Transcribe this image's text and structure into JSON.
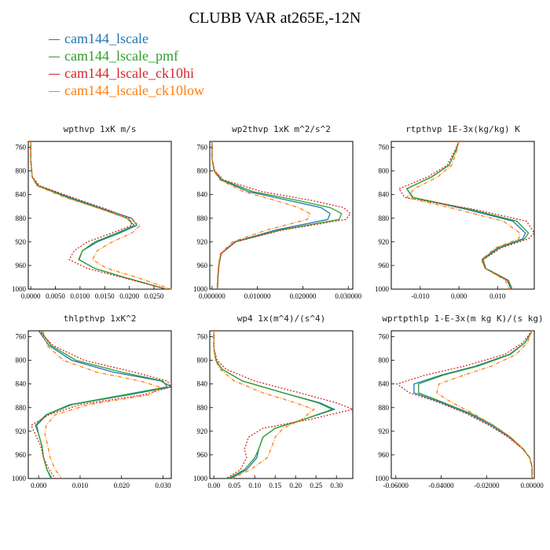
{
  "title": "CLUBB VAR at265E,-12N",
  "series": [
    {
      "name": "cam144_lscale",
      "color": "#1f77b4",
      "dash": ""
    },
    {
      "name": "cam144_lscale_pmf",
      "color": "#2ca02c",
      "dash": ""
    },
    {
      "name": "cam144_lscale_ck10hi",
      "color": "#d62728",
      "dash": "2,2"
    },
    {
      "name": "cam144_lscale_ck10low",
      "color": "#ff7f0e",
      "dash": "5,2,1,2"
    }
  ],
  "chart_data": [
    {
      "type": "line",
      "title": "wpthvp  1xK m/s",
      "xlim": [
        -0.0005,
        0.0285
      ],
      "ylim": [
        750,
        1000
      ],
      "y_ticks": [
        760,
        800,
        840,
        880,
        920,
        960,
        1000
      ],
      "x_ticks": [
        0.0,
        0.005,
        0.01,
        0.015,
        0.02,
        0.025
      ],
      "x_tick_labels": [
        "0.0000",
        "0.0050",
        "0.0100",
        "0.0150",
        "0.0200",
        "0.0250"
      ],
      "y": [
        750,
        780,
        810,
        825,
        845,
        865,
        880,
        892,
        905,
        920,
        935,
        950,
        965,
        980,
        1000
      ],
      "series": [
        {
          "x": [
            0.0,
            0.0,
            0.0003,
            0.0015,
            0.008,
            0.015,
            0.0205,
            0.0215,
            0.018,
            0.0135,
            0.0105,
            0.0098,
            0.013,
            0.019,
            0.0275
          ]
        },
        {
          "x": [
            0.0,
            0.0,
            0.0003,
            0.0014,
            0.0075,
            0.0145,
            0.0195,
            0.021,
            0.0175,
            0.013,
            0.0105,
            0.0097,
            0.013,
            0.019,
            0.0275
          ]
        },
        {
          "x": [
            0.0,
            0.0,
            0.0003,
            0.0018,
            0.0085,
            0.0155,
            0.02,
            0.0205,
            0.0165,
            0.0115,
            0.0088,
            0.0078,
            0.0115,
            0.0185,
            0.0275
          ]
        },
        {
          "x": [
            0.0,
            0.0,
            0.0003,
            0.0012,
            0.007,
            0.0145,
            0.0195,
            0.0222,
            0.0205,
            0.0165,
            0.0135,
            0.0125,
            0.0155,
            0.0215,
            0.0285
          ]
        }
      ]
    },
    {
      "type": "line",
      "title": "wp2thvp  1xK m^2/s^2",
      "xlim": [
        -0.0005,
        0.031
      ],
      "ylim": [
        750,
        1000
      ],
      "y_ticks": [
        760,
        800,
        840,
        880,
        920,
        960,
        1000
      ],
      "x_ticks": [
        0.0,
        0.01,
        0.02,
        0.03
      ],
      "x_tick_labels": [
        "0.000000",
        "0.010000",
        "0.020000",
        "0.030000"
      ],
      "y": [
        750,
        780,
        800,
        815,
        835,
        850,
        862,
        872,
        882,
        900,
        920,
        940,
        960,
        980,
        1000
      ],
      "series": [
        {
          "x": [
            0.0,
            0.0,
            0.0005,
            0.002,
            0.008,
            0.017,
            0.024,
            0.026,
            0.0255,
            0.014,
            0.005,
            0.002,
            0.0015,
            0.0013,
            0.0012
          ]
        },
        {
          "x": [
            0.0,
            0.0,
            0.0005,
            0.0022,
            0.009,
            0.019,
            0.026,
            0.0285,
            0.028,
            0.015,
            0.0052,
            0.002,
            0.0015,
            0.0013,
            0.0012
          ]
        },
        {
          "x": [
            0.0,
            0.0,
            0.0006,
            0.0025,
            0.011,
            0.022,
            0.029,
            0.0305,
            0.0295,
            0.0155,
            0.0052,
            0.002,
            0.0015,
            0.0013,
            0.0012
          ]
        },
        {
          "x": [
            0.0,
            0.0,
            0.0004,
            0.0017,
            0.007,
            0.014,
            0.019,
            0.0215,
            0.021,
            0.012,
            0.0045,
            0.0018,
            0.0014,
            0.0012,
            0.0011
          ]
        }
      ]
    },
    {
      "type": "line",
      "title": "rtpthvp  1E-3x(kg/kg) K",
      "xlim": [
        -0.0175,
        0.0195
      ],
      "ylim": [
        750,
        1000
      ],
      "y_ticks": [
        760,
        800,
        840,
        880,
        920,
        960,
        1000
      ],
      "x_ticks": [
        -0.01,
        0.0,
        0.01
      ],
      "x_tick_labels": [
        "-0.010",
        "0.000",
        "0.010"
      ],
      "y": [
        750,
        765,
        790,
        810,
        830,
        845,
        865,
        885,
        905,
        915,
        930,
        950,
        965,
        985,
        1000
      ],
      "series": [
        {
          "x": [
            0.0,
            -0.0008,
            -0.0025,
            -0.007,
            -0.0135,
            -0.012,
            0.002,
            0.014,
            0.0172,
            0.0165,
            0.01,
            0.006,
            0.0068,
            0.0125,
            0.0135
          ]
        },
        {
          "x": [
            0.0,
            -0.0008,
            -0.0025,
            -0.007,
            -0.0135,
            -0.0118,
            0.003,
            0.015,
            0.018,
            0.017,
            0.0105,
            0.0062,
            0.007,
            0.0128,
            0.0138
          ]
        },
        {
          "x": [
            0.0,
            -0.001,
            -0.003,
            -0.008,
            -0.0155,
            -0.014,
            0.004,
            0.0175,
            0.0195,
            0.018,
            0.011,
            0.0063,
            0.0068,
            0.0125,
            0.0135
          ]
        },
        {
          "x": [
            0.0,
            -0.0005,
            -0.0018,
            -0.0055,
            -0.0115,
            -0.0135,
            -0.0005,
            0.0115,
            0.0158,
            0.0155,
            0.0095,
            0.0058,
            0.0068,
            0.012,
            0.013
          ]
        }
      ]
    },
    {
      "type": "line",
      "title": "thlpthvp  1xK^2",
      "xlim": [
        -0.0025,
        0.032
      ],
      "ylim": [
        750,
        1000
      ],
      "y_ticks": [
        760,
        800,
        840,
        880,
        920,
        960,
        1000
      ],
      "x_ticks": [
        0.0,
        0.01,
        0.02,
        0.03
      ],
      "x_tick_labels": [
        "0.000",
        "0.010",
        "0.020",
        "0.030"
      ],
      "y": [
        750,
        775,
        800,
        820,
        835,
        845,
        858,
        875,
        892,
        910,
        925,
        945,
        965,
        985,
        1000
      ],
      "series": [
        {
          "x": [
            0.0,
            0.0025,
            0.008,
            0.018,
            0.0295,
            0.032,
            0.022,
            0.008,
            0.002,
            -0.0005,
            0.0,
            0.0008,
            0.0012,
            0.002,
            0.003
          ]
        },
        {
          "x": [
            0.0005,
            0.003,
            0.009,
            0.02,
            0.03,
            0.031,
            0.021,
            0.0075,
            0.0018,
            -0.0008,
            0.0,
            0.0008,
            0.0012,
            0.002,
            0.0032
          ]
        },
        {
          "x": [
            0.0,
            0.0035,
            0.011,
            0.023,
            0.031,
            0.032,
            0.0255,
            0.01,
            0.0025,
            -0.0018,
            -0.0008,
            0.0005,
            0.0012,
            0.0025,
            0.004
          ]
        },
        {
          "x": [
            0.001,
            0.002,
            0.006,
            0.014,
            0.0245,
            0.029,
            0.027,
            0.012,
            0.004,
            0.0018,
            0.0015,
            0.0022,
            0.0028,
            0.004,
            0.0055
          ]
        }
      ]
    },
    {
      "type": "line",
      "title": "wp4  1x(m^4)/(s^4)",
      "xlim": [
        -0.01,
        0.34
      ],
      "ylim": [
        750,
        1000
      ],
      "y_ticks": [
        760,
        800,
        840,
        880,
        920,
        960,
        1000
      ],
      "x_ticks": [
        0.0,
        0.05,
        0.1,
        0.15,
        0.2,
        0.25,
        0.3
      ],
      "x_tick_labels": [
        "0.00",
        "0.05",
        "0.10",
        "0.15",
        "0.20",
        "0.25",
        "0.30"
      ],
      "y": [
        750,
        780,
        800,
        815,
        835,
        855,
        872,
        883,
        900,
        915,
        930,
        950,
        965,
        985,
        1000
      ],
      "series": [
        {
          "x": [
            0.0,
            0.0,
            0.005,
            0.02,
            0.07,
            0.17,
            0.26,
            0.295,
            0.22,
            0.15,
            0.12,
            0.11,
            0.105,
            0.08,
            0.04
          ]
        },
        {
          "x": [
            0.0,
            0.0,
            0.005,
            0.02,
            0.07,
            0.17,
            0.255,
            0.29,
            0.22,
            0.15,
            0.12,
            0.11,
            0.1,
            0.075,
            0.035
          ]
        },
        {
          "x": [
            0.0,
            0.0,
            0.008,
            0.03,
            0.1,
            0.21,
            0.3,
            0.34,
            0.235,
            0.12,
            0.085,
            0.075,
            0.08,
            0.065,
            0.03
          ]
        },
        {
          "x": [
            0.0,
            0.0,
            0.004,
            0.015,
            0.05,
            0.12,
            0.2,
            0.245,
            0.215,
            0.17,
            0.15,
            0.14,
            0.13,
            0.09,
            0.045
          ]
        }
      ]
    },
    {
      "type": "line",
      "title": "wprtpthlp  1-E-3x(m kg K)/(s kg)",
      "xlim": [
        -0.062,
        0.001
      ],
      "ylim": [
        750,
        1000
      ],
      "y_ticks": [
        760,
        800,
        840,
        880,
        920,
        960,
        1000
      ],
      "x_ticks": [
        -0.06,
        -0.04,
        -0.02,
        0.0
      ],
      "x_tick_labels": [
        "-0.06000",
        "-0.04000",
        "-0.02000",
        "0.00000"
      ],
      "y": [
        750,
        770,
        790,
        810,
        825,
        840,
        855,
        870,
        890,
        910,
        930,
        950,
        965,
        980,
        1000
      ],
      "series": [
        {
          "x": [
            0.0,
            -0.003,
            -0.01,
            -0.025,
            -0.04,
            -0.052,
            -0.052,
            -0.041,
            -0.028,
            -0.018,
            -0.01,
            -0.004,
            -0.001,
            0.0,
            0.0
          ]
        },
        {
          "x": [
            0.0,
            -0.003,
            -0.0095,
            -0.024,
            -0.039,
            -0.05,
            -0.05,
            -0.04,
            -0.027,
            -0.017,
            -0.0095,
            -0.0038,
            -0.001,
            0.0,
            0.0
          ]
        },
        {
          "x": [
            0.0,
            -0.004,
            -0.012,
            -0.03,
            -0.047,
            -0.0595,
            -0.054,
            -0.042,
            -0.029,
            -0.019,
            -0.0105,
            -0.0042,
            -0.001,
            0.0,
            0.0
          ]
        },
        {
          "x": [
            0.0,
            -0.002,
            -0.007,
            -0.018,
            -0.03,
            -0.041,
            -0.042,
            -0.036,
            -0.026,
            -0.017,
            -0.0095,
            -0.004,
            -0.001,
            0.0,
            0.0
          ]
        }
      ]
    }
  ]
}
